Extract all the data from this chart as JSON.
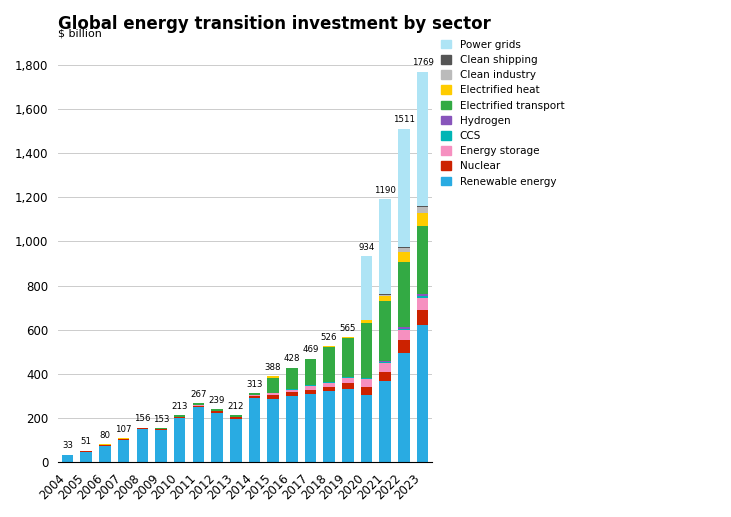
{
  "title": "Global energy transition investment by sector",
  "ylabel": "$ billion",
  "years": [
    "2004",
    "2005",
    "2006",
    "2007",
    "2008",
    "2009",
    "2010",
    "2011",
    "2012",
    "2013",
    "2014",
    "2015",
    "2016",
    "2017",
    "2018",
    "2019",
    "2020",
    "2021",
    "2022",
    "2023"
  ],
  "sectors": {
    "Renewable energy": [
      30,
      46,
      73,
      99,
      148,
      144,
      199,
      248,
      221,
      195,
      288,
      286,
      297,
      310,
      320,
      330,
      303,
      366,
      495,
      623
    ],
    "Nuclear": [
      2,
      2,
      3,
      4,
      4,
      4,
      5,
      7,
      8,
      8,
      10,
      16,
      18,
      18,
      21,
      30,
      37,
      44,
      58,
      65
    ],
    "Energy storage": [
      0,
      1,
      1,
      1,
      1,
      1,
      1,
      2,
      2,
      2,
      4,
      9,
      13,
      16,
      18,
      20,
      35,
      37,
      46,
      56
    ],
    "CCS": [
      0,
      0,
      0,
      0,
      0,
      0,
      0,
      1,
      1,
      1,
      2,
      3,
      4,
      4,
      4,
      4,
      5,
      6,
      6,
      7
    ],
    "Hydrogen": [
      0,
      0,
      0,
      0,
      0,
      0,
      0,
      0,
      0,
      0,
      0,
      0,
      0,
      0,
      0,
      1,
      2,
      5,
      9,
      10
    ],
    "Electrified transport": [
      0,
      1,
      2,
      2,
      2,
      3,
      6,
      8,
      6,
      6,
      8,
      68,
      94,
      118,
      160,
      177,
      250,
      273,
      294,
      310
    ],
    "Electrified heat": [
      0,
      1,
      1,
      1,
      1,
      1,
      2,
      1,
      1,
      0,
      1,
      6,
      2,
      3,
      3,
      3,
      10,
      20,
      45,
      60
    ],
    "Clean industry": [
      0,
      0,
      0,
      0,
      0,
      0,
      0,
      0,
      0,
      0,
      0,
      0,
      0,
      0,
      0,
      0,
      0,
      7,
      16,
      25
    ],
    "Clean shipping": [
      0,
      0,
      0,
      0,
      0,
      0,
      0,
      0,
      0,
      0,
      0,
      0,
      0,
      0,
      0,
      0,
      0,
      2,
      4,
      6
    ],
    "Power grids": [
      1,
      0,
      0,
      0,
      0,
      0,
      0,
      0,
      0,
      0,
      0,
      0,
      0,
      0,
      0,
      0,
      292,
      430,
      538,
      607
    ]
  },
  "colors": {
    "Renewable energy": "#29ABE2",
    "Nuclear": "#CC2200",
    "Energy storage": "#F690C0",
    "CCS": "#00B5B5",
    "Hydrogen": "#8855BB",
    "Electrified transport": "#33AA44",
    "Electrified heat": "#FFCC00",
    "Clean industry": "#BBBBBB",
    "Clean shipping": "#555555",
    "Power grids": "#AEE4F5"
  },
  "ylim": [
    0,
    1900
  ],
  "yticks": [
    0,
    200,
    400,
    600,
    800,
    1000,
    1200,
    1400,
    1600,
    1800
  ],
  "annotate_years": {
    "2004": 33,
    "2005": 51,
    "2006": 80,
    "2007": 107,
    "2008": 156,
    "2009": 153,
    "2010": 213,
    "2011": 267,
    "2012": 239,
    "2013": 212,
    "2014": 313,
    "2015": 388,
    "2016": 428,
    "2017": 469,
    "2018": 526,
    "2019": 565,
    "2020": 934,
    "2021": 1190,
    "2022": 1511,
    "2023": 1769
  }
}
